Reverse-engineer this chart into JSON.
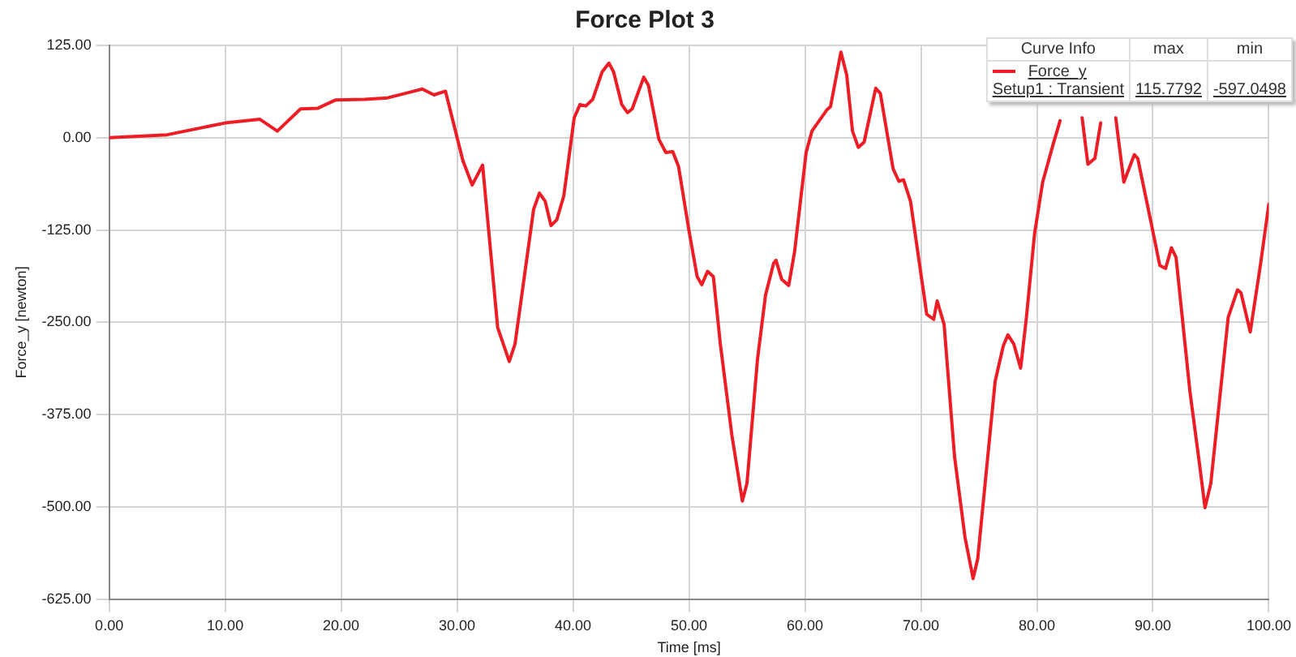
{
  "chart_data": {
    "type": "line",
    "title": "Force Plot 3",
    "xlabel": "Time [ms]",
    "ylabel": "Force_y [newton]",
    "legend": "top right",
    "grid": true,
    "marker": "none",
    "line_style": "solid",
    "annotations": [
      "Curve Info",
      "max",
      "min",
      "Setup1 : Transient",
      "115.7792",
      "-597.0498"
    ],
    "xlim": [
      0,
      100
    ],
    "xticks": [
      {
        "value": 0,
        "label": "0.00"
      },
      {
        "value": 10,
        "label": "10.00"
      },
      {
        "value": 20,
        "label": "20.00"
      },
      {
        "value": 30,
        "label": "30.00"
      },
      {
        "value": 40,
        "label": "40.00"
      },
      {
        "value": 50,
        "label": "50.00"
      },
      {
        "value": 60,
        "label": "60.00"
      },
      {
        "value": 70,
        "label": "70.00"
      },
      {
        "value": 80,
        "label": "80.00"
      },
      {
        "value": 90,
        "label": "90.00"
      },
      {
        "value": 100,
        "label": "100.00"
      }
    ],
    "ylim": [
      -625,
      125
    ],
    "yticks": [
      {
        "value": -625,
        "label": "-625.00"
      },
      {
        "value": -500,
        "label": "-500.00"
      },
      {
        "value": -375,
        "label": "-375.00"
      },
      {
        "value": -250,
        "label": "-250.00"
      },
      {
        "value": -125,
        "label": "-125.00"
      },
      {
        "value": 0,
        "label": "0.00"
      },
      {
        "value": 125,
        "label": "125.00"
      }
    ],
    "x": [
      0,
      5,
      10,
      13,
      14.5,
      16.5,
      18,
      19.5,
      22,
      24,
      27,
      28,
      29,
      30.5,
      31.3,
      32.2,
      33.5,
      34.5,
      35,
      36.6,
      37.1,
      37.6,
      38.1,
      38.6,
      39.2,
      40.1,
      40.6,
      41.1,
      41.7,
      42.5,
      43.1,
      43.5,
      44.2,
      44.7,
      45.1,
      46.1,
      46.5,
      47.4,
      48,
      48.6,
      49.1,
      50,
      50.7,
      51.1,
      51.6,
      52.1,
      52.7,
      53.7,
      54.6,
      55,
      55.9,
      56.6,
      57.3,
      57.5,
      58,
      58.6,
      59.1,
      60.1,
      60.6,
      61.9,
      62.2,
      63.1,
      63.6,
      64.1,
      64.6,
      65.1,
      66.1,
      66.5,
      67.6,
      68.1,
      68.5,
      69.1,
      70.5,
      71.1,
      71.4,
      72,
      72.9,
      73.8,
      74.5,
      74.9,
      76.4,
      77.1,
      77.5,
      78,
      78.6,
      79.1,
      79.8,
      80.5,
      81.4,
      82,
      83,
      83.9,
      84.4,
      85,
      85.5,
      86.2,
      86.8,
      87.5,
      88.4,
      88.7,
      89.9,
      90.6,
      91.1,
      91.6,
      92,
      93.2,
      94,
      94.5,
      95,
      96.5,
      97.3,
      97.6,
      98.4,
      99.3,
      100
    ],
    "series": [
      {
        "name": "Force_y",
        "color": "#ee1c25",
        "values": [
          0,
          4,
          20,
          25,
          9,
          39,
          40,
          51,
          52,
          54,
          66,
          58,
          63,
          -31,
          -64,
          -37,
          -257,
          -303,
          -279,
          -97,
          -75,
          -86,
          -119,
          -111,
          -79,
          27,
          45,
          43,
          52,
          89,
          101,
          89,
          45,
          34,
          39,
          82,
          71,
          -2,
          -20,
          -19,
          -39,
          -126,
          -188,
          -199,
          -181,
          -188,
          -279,
          -403,
          -492,
          -468,
          -301,
          -213,
          -170,
          -166,
          -192,
          -200,
          -155,
          -20,
          9,
          38,
          42,
          116,
          85,
          9,
          -13,
          -6,
          67,
          60,
          -42,
          -59,
          -57,
          -86,
          -239,
          -246,
          -221,
          -253,
          -432,
          -541,
          -597,
          -570,
          -330,
          -282,
          -267,
          -279,
          -312,
          -243,
          -130,
          -60,
          -9,
          23,
          null,
          27,
          -36,
          -28,
          20,
          null,
          27,
          -60,
          -23,
          -28,
          -119,
          -173,
          -177,
          -149,
          -162,
          -344,
          -439,
          -501,
          -468,
          -243,
          -206,
          -210,
          -263,
          -170,
          -90
        ]
      }
    ]
  }
}
